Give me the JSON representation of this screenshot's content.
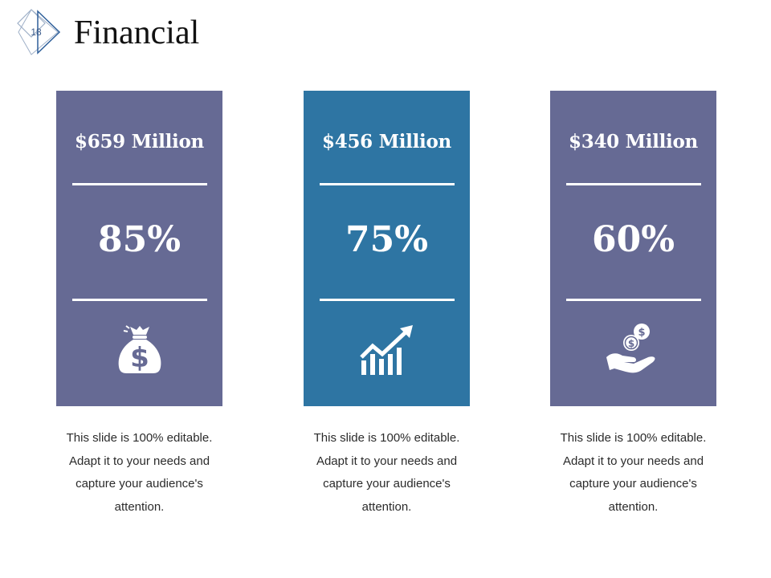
{
  "slide": {
    "number": "18",
    "title": "Financial"
  },
  "colors": {
    "card_purple": "#666a94",
    "card_blue": "#2e75a3",
    "text_on_card": "#ffffff"
  },
  "cards": [
    {
      "amount": "$659 Million",
      "percent": "85%",
      "icon": "money-bag-icon",
      "caption": "This slide is 100% editable. Adapt it to your needs and capture your audience's attention."
    },
    {
      "amount": "$456 Million",
      "percent": "75%",
      "icon": "growth-chart-icon",
      "caption": "This slide is 100% editable. Adapt it to your needs and capture your audience's attention."
    },
    {
      "amount": "$340 Million",
      "percent": "60%",
      "icon": "hand-coins-icon",
      "caption": "This slide is 100% editable. Adapt it to your needs and capture your audience's attention."
    }
  ]
}
